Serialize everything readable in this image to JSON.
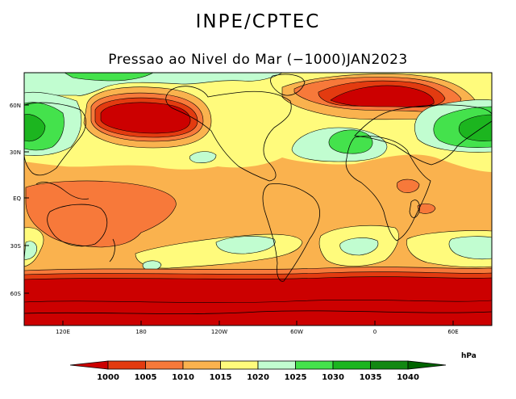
{
  "header": {
    "agency": "INPE/CPTEC",
    "product": "Pressao ao Nivel do Mar (−1000)JAN2023"
  },
  "map": {
    "lat_labels": [
      "60N",
      "30N",
      "EQ",
      "30S",
      "60S"
    ],
    "lon_labels": [
      "120E",
      "180",
      "120W",
      "60W",
      "0",
      "60E"
    ]
  },
  "colorbar": {
    "unit": "hPa",
    "levels": [
      "1000",
      "1005",
      "1010",
      "1015",
      "1020",
      "1025",
      "1030",
      "1035",
      "1040"
    ],
    "colors": [
      "#cc0000",
      "#e33b10",
      "#f7793a",
      "#fab24e",
      "#fffb7c",
      "#c1fdd0",
      "#44e24c",
      "#1cb51f",
      "#128812",
      "#006400"
    ]
  }
}
